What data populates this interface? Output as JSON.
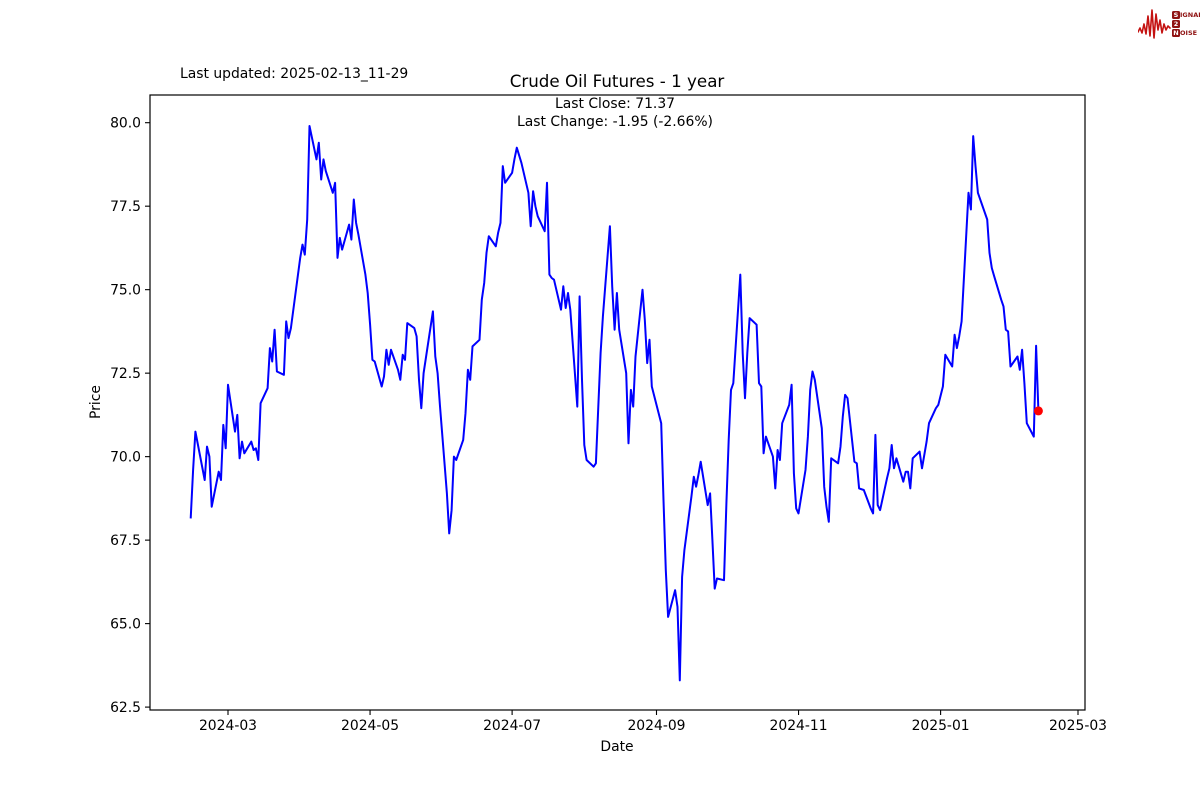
{
  "header": {
    "last_updated": "Last updated: 2025-02-13_11-29",
    "title": "Crude Oil Futures - 1 year"
  },
  "annotation": {
    "last_close": "Last Close: 71.37",
    "last_change": "Last Change: -1.95 (-2.66%)"
  },
  "logo": {
    "s": "S",
    "ignal": "IGNAL",
    "two": "2",
    "n": "N",
    "oise": "OISE",
    "wave_color": "#c41211",
    "box_color": "#8f1313",
    "text_color": "#8f1313"
  },
  "chart_data": {
    "type": "line",
    "title": "Crude Oil Futures - 1 year",
    "xlabel": "Date",
    "ylabel": "Price",
    "line_color": "#0000ff",
    "marker_color": "#ff0000",
    "grid": false,
    "legend": "none",
    "ylim": [
      62.4,
      80.8
    ],
    "xlim": [
      "2024-01-27",
      "2025-03-02"
    ],
    "y_ticks": [
      80.0,
      77.5,
      75.0,
      72.5,
      70.0,
      67.5,
      65.0,
      62.5
    ],
    "x_ticks": [
      "2024-03",
      "2024-05",
      "2024-07",
      "2024-09",
      "2024-11",
      "2025-01",
      "2025-03"
    ],
    "last_close": 71.37,
    "last_change": -1.95,
    "last_change_pct": -2.66,
    "series": [
      {
        "name": "Crude Oil Futures price",
        "points": [
          [
            "2024-02-14",
            68.15
          ],
          [
            "2024-02-15",
            69.6
          ],
          [
            "2024-02-16",
            70.75
          ],
          [
            "2024-02-20",
            69.3
          ],
          [
            "2024-02-21",
            70.3
          ],
          [
            "2024-02-22",
            70.0
          ],
          [
            "2024-02-23",
            68.5
          ],
          [
            "2024-02-26",
            69.55
          ],
          [
            "2024-02-27",
            69.3
          ],
          [
            "2024-02-28",
            70.95
          ],
          [
            "2024-02-29",
            70.25
          ],
          [
            "2024-03-01",
            72.15
          ],
          [
            "2024-03-04",
            70.75
          ],
          [
            "2024-03-05",
            71.25
          ],
          [
            "2024-03-06",
            69.95
          ],
          [
            "2024-03-07",
            70.45
          ],
          [
            "2024-03-08",
            70.1
          ],
          [
            "2024-03-11",
            70.45
          ],
          [
            "2024-03-12",
            70.2
          ],
          [
            "2024-03-13",
            70.25
          ],
          [
            "2024-03-14",
            69.9
          ],
          [
            "2024-03-15",
            71.6
          ],
          [
            "2024-03-18",
            72.05
          ],
          [
            "2024-03-19",
            73.25
          ],
          [
            "2024-03-20",
            72.85
          ],
          [
            "2024-03-21",
            73.8
          ],
          [
            "2024-03-22",
            72.55
          ],
          [
            "2024-03-25",
            72.45
          ],
          [
            "2024-03-26",
            74.05
          ],
          [
            "2024-03-27",
            73.55
          ],
          [
            "2024-03-28",
            73.85
          ],
          [
            "2024-04-01",
            75.95
          ],
          [
            "2024-04-02",
            76.35
          ],
          [
            "2024-04-03",
            76.05
          ],
          [
            "2024-04-04",
            77.1
          ],
          [
            "2024-04-05",
            79.9
          ],
          [
            "2024-04-08",
            78.9
          ],
          [
            "2024-04-09",
            79.4
          ],
          [
            "2024-04-10",
            78.3
          ],
          [
            "2024-04-11",
            78.9
          ],
          [
            "2024-04-12",
            78.55
          ],
          [
            "2024-04-15",
            77.9
          ],
          [
            "2024-04-16",
            78.2
          ],
          [
            "2024-04-17",
            75.95
          ],
          [
            "2024-04-18",
            76.55
          ],
          [
            "2024-04-19",
            76.2
          ],
          [
            "2024-04-22",
            76.95
          ],
          [
            "2024-04-23",
            76.5
          ],
          [
            "2024-04-24",
            77.7
          ],
          [
            "2024-04-25",
            77.0
          ],
          [
            "2024-04-26",
            76.65
          ],
          [
            "2024-04-29",
            75.45
          ],
          [
            "2024-04-30",
            74.9
          ],
          [
            "2024-05-01",
            73.95
          ],
          [
            "2024-05-02",
            72.9
          ],
          [
            "2024-05-03",
            72.85
          ],
          [
            "2024-05-06",
            72.1
          ],
          [
            "2024-05-07",
            72.4
          ],
          [
            "2024-05-08",
            73.2
          ],
          [
            "2024-05-09",
            72.75
          ],
          [
            "2024-05-10",
            73.2
          ],
          [
            "2024-05-13",
            72.6
          ],
          [
            "2024-05-14",
            72.3
          ],
          [
            "2024-05-15",
            73.05
          ],
          [
            "2024-05-16",
            72.9
          ],
          [
            "2024-05-17",
            74.0
          ],
          [
            "2024-05-20",
            73.85
          ],
          [
            "2024-05-21",
            73.6
          ],
          [
            "2024-05-22",
            72.3
          ],
          [
            "2024-05-23",
            71.45
          ],
          [
            "2024-05-24",
            72.5
          ],
          [
            "2024-05-28",
            74.35
          ],
          [
            "2024-05-29",
            73.0
          ],
          [
            "2024-05-30",
            72.5
          ],
          [
            "2024-05-31",
            71.55
          ],
          [
            "2024-06-03",
            68.9
          ],
          [
            "2024-06-04",
            67.7
          ],
          [
            "2024-06-05",
            68.4
          ],
          [
            "2024-06-06",
            70.0
          ],
          [
            "2024-06-07",
            69.9
          ],
          [
            "2024-06-10",
            70.5
          ],
          [
            "2024-06-11",
            71.3
          ],
          [
            "2024-06-12",
            72.6
          ],
          [
            "2024-06-13",
            72.3
          ],
          [
            "2024-06-14",
            73.3
          ],
          [
            "2024-06-17",
            73.5
          ],
          [
            "2024-06-18",
            74.7
          ],
          [
            "2024-06-19",
            75.2
          ],
          [
            "2024-06-20",
            76.1
          ],
          [
            "2024-06-21",
            76.6
          ],
          [
            "2024-06-24",
            76.3
          ],
          [
            "2024-06-25",
            76.7
          ],
          [
            "2024-06-26",
            77.0
          ],
          [
            "2024-06-27",
            78.7
          ],
          [
            "2024-06-28",
            78.2
          ],
          [
            "2024-07-01",
            78.5
          ],
          [
            "2024-07-02",
            78.9
          ],
          [
            "2024-07-03",
            79.25
          ],
          [
            "2024-07-05",
            78.8
          ],
          [
            "2024-07-08",
            77.9
          ],
          [
            "2024-07-09",
            76.9
          ],
          [
            "2024-07-10",
            77.95
          ],
          [
            "2024-07-11",
            77.5
          ],
          [
            "2024-07-12",
            77.2
          ],
          [
            "2024-07-15",
            76.75
          ],
          [
            "2024-07-16",
            78.2
          ],
          [
            "2024-07-17",
            75.45
          ],
          [
            "2024-07-18",
            75.35
          ],
          [
            "2024-07-19",
            75.3
          ],
          [
            "2024-07-22",
            74.4
          ],
          [
            "2024-07-23",
            75.1
          ],
          [
            "2024-07-24",
            74.45
          ],
          [
            "2024-07-25",
            74.9
          ],
          [
            "2024-07-26",
            74.4
          ],
          [
            "2024-07-29",
            71.5
          ],
          [
            "2024-07-30",
            74.8
          ],
          [
            "2024-07-31",
            72.3
          ],
          [
            "2024-08-01",
            70.35
          ],
          [
            "2024-08-02",
            69.9
          ],
          [
            "2024-08-05",
            69.7
          ],
          [
            "2024-08-06",
            69.8
          ],
          [
            "2024-08-07",
            71.5
          ],
          [
            "2024-08-08",
            73.1
          ],
          [
            "2024-08-09",
            74.2
          ],
          [
            "2024-08-12",
            76.9
          ],
          [
            "2024-08-13",
            75.1
          ],
          [
            "2024-08-14",
            73.8
          ],
          [
            "2024-08-15",
            74.9
          ],
          [
            "2024-08-16",
            73.8
          ],
          [
            "2024-08-19",
            72.5
          ],
          [
            "2024-08-20",
            70.4
          ],
          [
            "2024-08-21",
            72.0
          ],
          [
            "2024-08-22",
            71.5
          ],
          [
            "2024-08-23",
            73.0
          ],
          [
            "2024-08-26",
            75.0
          ],
          [
            "2024-08-27",
            74.1
          ],
          [
            "2024-08-28",
            72.8
          ],
          [
            "2024-08-29",
            73.5
          ],
          [
            "2024-08-30",
            72.1
          ],
          [
            "2024-09-03",
            71.0
          ],
          [
            "2024-09-04",
            68.7
          ],
          [
            "2024-09-05",
            66.6
          ],
          [
            "2024-09-06",
            65.2
          ],
          [
            "2024-09-09",
            66.0
          ],
          [
            "2024-09-10",
            65.5
          ],
          [
            "2024-09-11",
            63.3
          ],
          [
            "2024-09-12",
            66.4
          ],
          [
            "2024-09-13",
            67.2
          ],
          [
            "2024-09-16",
            68.8
          ],
          [
            "2024-09-17",
            69.4
          ],
          [
            "2024-09-18",
            69.1
          ],
          [
            "2024-09-19",
            69.45
          ],
          [
            "2024-09-20",
            69.85
          ],
          [
            "2024-09-23",
            68.55
          ],
          [
            "2024-09-24",
            68.9
          ],
          [
            "2024-09-25",
            67.5
          ],
          [
            "2024-09-26",
            66.05
          ],
          [
            "2024-09-27",
            66.35
          ],
          [
            "2024-09-30",
            66.3
          ],
          [
            "2024-10-01",
            68.6
          ],
          [
            "2024-10-02",
            70.5
          ],
          [
            "2024-10-03",
            72.0
          ],
          [
            "2024-10-04",
            72.2
          ],
          [
            "2024-10-07",
            75.45
          ],
          [
            "2024-10-08",
            73.1
          ],
          [
            "2024-10-09",
            71.75
          ],
          [
            "2024-10-10",
            73.1
          ],
          [
            "2024-10-11",
            74.15
          ],
          [
            "2024-10-14",
            73.95
          ],
          [
            "2024-10-15",
            72.2
          ],
          [
            "2024-10-16",
            72.1
          ],
          [
            "2024-10-17",
            70.1
          ],
          [
            "2024-10-18",
            70.6
          ],
          [
            "2024-10-21",
            70.0
          ],
          [
            "2024-10-22",
            69.05
          ],
          [
            "2024-10-23",
            70.2
          ],
          [
            "2024-10-24",
            69.9
          ],
          [
            "2024-10-25",
            71.0
          ],
          [
            "2024-10-28",
            71.55
          ],
          [
            "2024-10-29",
            72.15
          ],
          [
            "2024-10-30",
            69.5
          ],
          [
            "2024-10-31",
            68.45
          ],
          [
            "2024-11-01",
            68.3
          ],
          [
            "2024-11-04",
            69.6
          ],
          [
            "2024-11-05",
            70.6
          ],
          [
            "2024-11-06",
            72.0
          ],
          [
            "2024-11-07",
            72.55
          ],
          [
            "2024-11-08",
            72.3
          ],
          [
            "2024-11-11",
            70.85
          ],
          [
            "2024-11-12",
            69.1
          ],
          [
            "2024-11-13",
            68.5
          ],
          [
            "2024-11-14",
            68.05
          ],
          [
            "2024-11-15",
            69.95
          ],
          [
            "2024-11-18",
            69.8
          ],
          [
            "2024-11-19",
            70.3
          ],
          [
            "2024-11-20",
            71.2
          ],
          [
            "2024-11-21",
            71.85
          ],
          [
            "2024-11-22",
            71.75
          ],
          [
            "2024-11-25",
            69.85
          ],
          [
            "2024-11-26",
            69.8
          ],
          [
            "2024-11-27",
            69.05
          ],
          [
            "2024-11-29",
            69.0
          ],
          [
            "2024-12-02",
            68.45
          ],
          [
            "2024-12-03",
            68.3
          ],
          [
            "2024-12-04",
            70.65
          ],
          [
            "2024-12-05",
            68.55
          ],
          [
            "2024-12-06",
            68.4
          ],
          [
            "2024-12-09",
            69.35
          ],
          [
            "2024-12-10",
            69.65
          ],
          [
            "2024-12-11",
            70.35
          ],
          [
            "2024-12-12",
            69.65
          ],
          [
            "2024-12-13",
            69.95
          ],
          [
            "2024-12-16",
            69.25
          ],
          [
            "2024-12-17",
            69.55
          ],
          [
            "2024-12-18",
            69.55
          ],
          [
            "2024-12-19",
            69.05
          ],
          [
            "2024-12-20",
            69.95
          ],
          [
            "2024-12-23",
            70.15
          ],
          [
            "2024-12-24",
            69.65
          ],
          [
            "2024-12-26",
            70.45
          ],
          [
            "2024-12-27",
            71.0
          ],
          [
            "2024-12-30",
            71.45
          ],
          [
            "2024-12-31",
            71.55
          ],
          [
            "2025-01-02",
            72.1
          ],
          [
            "2025-01-03",
            73.05
          ],
          [
            "2025-01-06",
            72.7
          ],
          [
            "2025-01-07",
            73.65
          ],
          [
            "2025-01-08",
            73.25
          ],
          [
            "2025-01-09",
            73.6
          ],
          [
            "2025-01-10",
            74.05
          ],
          [
            "2025-01-13",
            77.9
          ],
          [
            "2025-01-14",
            77.4
          ],
          [
            "2025-01-15",
            79.6
          ],
          [
            "2025-01-16",
            78.7
          ],
          [
            "2025-01-17",
            77.9
          ],
          [
            "2025-01-21",
            77.1
          ],
          [
            "2025-01-22",
            76.1
          ],
          [
            "2025-01-23",
            75.65
          ],
          [
            "2025-01-24",
            75.4
          ],
          [
            "2025-01-27",
            74.7
          ],
          [
            "2025-01-28",
            74.5
          ],
          [
            "2025-01-29",
            73.8
          ],
          [
            "2025-01-30",
            73.75
          ],
          [
            "2025-01-31",
            72.7
          ],
          [
            "2025-02-03",
            73.0
          ],
          [
            "2025-02-04",
            72.6
          ],
          [
            "2025-02-05",
            73.2
          ],
          [
            "2025-02-06",
            72.2
          ],
          [
            "2025-02-07",
            71.0
          ],
          [
            "2025-02-10",
            70.6
          ],
          [
            "2025-02-11",
            73.32
          ],
          [
            "2025-02-12",
            71.37
          ]
        ]
      }
    ]
  }
}
